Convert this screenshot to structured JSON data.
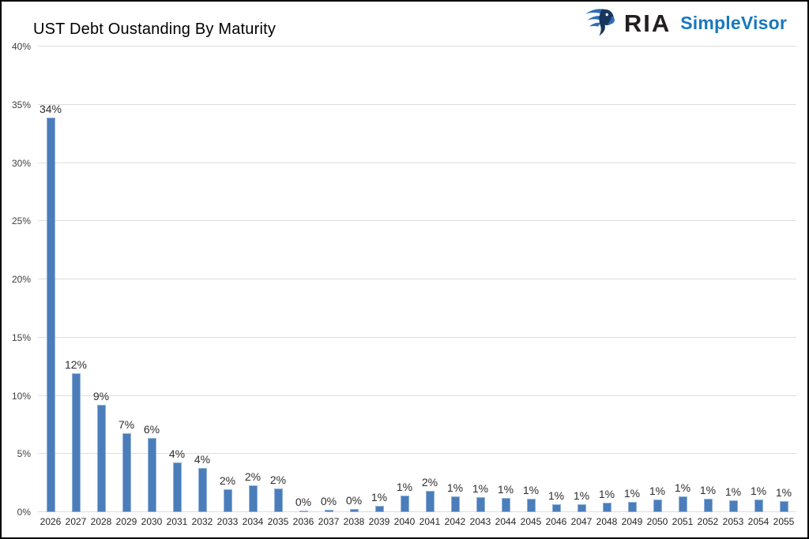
{
  "header": {
    "title": "UST Debt Oustanding By Maturity",
    "logo": {
      "icon": "eagle-shield-icon",
      "brand": "RIA",
      "product": "SimpleVisor",
      "brand_color": "#231f20",
      "product_color": "#1878be"
    }
  },
  "chart_data": {
    "type": "bar",
    "title": "UST Debt Oustanding By Maturity",
    "xlabel": "",
    "ylabel": "",
    "ylim": [
      0,
      40
    ],
    "yticks": [
      "0%",
      "5%",
      "10%",
      "15%",
      "20%",
      "25%",
      "30%",
      "35%",
      "40%"
    ],
    "grid": true,
    "legend": false,
    "categories": [
      "2026",
      "2027",
      "2028",
      "2029",
      "2030",
      "2031",
      "2032",
      "2033",
      "2034",
      "2035",
      "2036",
      "2037",
      "2038",
      "2039",
      "2040",
      "2041",
      "2042",
      "2043",
      "2044",
      "2045",
      "2046",
      "2047",
      "2048",
      "2049",
      "2050",
      "2051",
      "2052",
      "2053",
      "2054",
      "2055"
    ],
    "labels": [
      "34%",
      "12%",
      "9%",
      "7%",
      "6%",
      "4%",
      "4%",
      "2%",
      "2%",
      "2%",
      "0%",
      "0%",
      "0%",
      "1%",
      "1%",
      "2%",
      "1%",
      "1%",
      "1%",
      "1%",
      "1%",
      "1%",
      "1%",
      "1%",
      "1%",
      "1%",
      "1%",
      "1%",
      "1%",
      "1%"
    ],
    "values": [
      33.9,
      11.9,
      9.2,
      6.8,
      6.4,
      4.3,
      3.8,
      1.95,
      2.3,
      2.05,
      0.15,
      0.2,
      0.3,
      0.55,
      1.45,
      1.8,
      1.35,
      1.3,
      1.25,
      1.15,
      0.7,
      0.65,
      0.8,
      0.9,
      1.1,
      1.35,
      1.15,
      1.0,
      1.1,
      0.95
    ],
    "bar_color": "#4b7dbb",
    "bar_border_color": "#8fb2d9",
    "gridline_color": "#dedede",
    "tick_label_color": "#404040",
    "value_label_color": "#2e2e2e"
  }
}
